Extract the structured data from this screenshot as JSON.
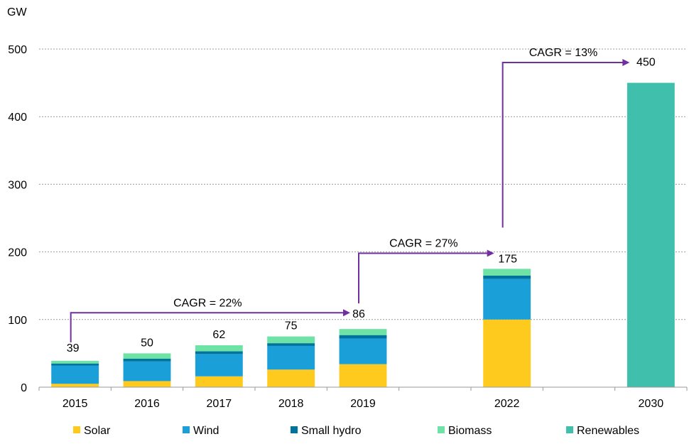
{
  "chart_data": {
    "type": "bar",
    "stacked": true,
    "ylabel": "GW",
    "ylim": [
      0,
      500
    ],
    "yticks": [
      0,
      100,
      200,
      300,
      400,
      500
    ],
    "grid": true,
    "legend_position": "bottom",
    "categories": [
      "2015",
      "2016",
      "2017",
      "2018",
      "2019",
      "",
      "2022",
      "",
      "2030"
    ],
    "series": [
      {
        "name": "Solar",
        "color": "#FFCA1E",
        "values": [
          5,
          9,
          16,
          26,
          34,
          0,
          100,
          0,
          0
        ]
      },
      {
        "name": "Wind",
        "color": "#1A9FD9",
        "values": [
          27,
          29,
          33,
          35,
          38,
          0,
          60,
          0,
          0
        ]
      },
      {
        "name": "Small hydro",
        "color": "#00739C",
        "values": [
          3,
          4,
          4,
          4,
          5,
          0,
          5,
          0,
          0
        ]
      },
      {
        "name": "Biomass",
        "color": "#6FE2A5",
        "values": [
          4,
          8,
          9,
          10,
          9,
          0,
          10,
          0,
          0
        ]
      },
      {
        "name": "Renewables",
        "color": "#40BFAD",
        "values": [
          0,
          0,
          0,
          0,
          0,
          0,
          0,
          0,
          450
        ]
      }
    ],
    "totals": [
      "39",
      "50",
      "62",
      "75",
      "86",
      "",
      "175",
      "",
      "450"
    ],
    "annotations": [
      {
        "text": "CAGR = 22%",
        "from": "2015",
        "to": "2019",
        "from_value": 39,
        "level": 110,
        "to_value": 86
      },
      {
        "text": "CAGR = 27%",
        "from": "2019",
        "to": "2022",
        "from_value": 86,
        "level": 198,
        "to_value": 198
      },
      {
        "text": "CAGR = 13%",
        "from": "2022",
        "to": "2030",
        "from_value": 175,
        "level": 480,
        "to_value": 480
      }
    ],
    "colors": {
      "arrow": "#7030A0",
      "grid": "#999999",
      "axis": "#999999"
    }
  }
}
